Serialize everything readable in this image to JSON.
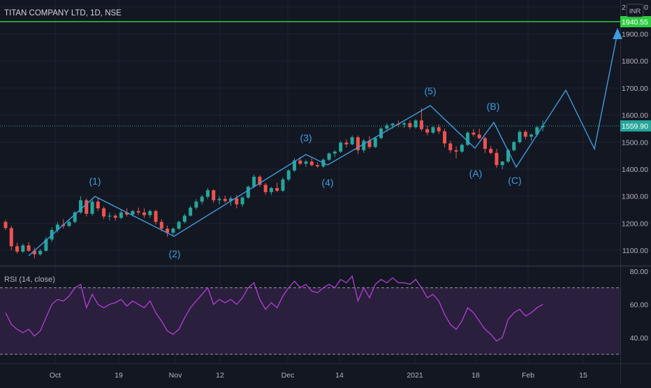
{
  "header": {
    "symbol_line": "TITAN COMPANY LTD, 1D, NSE"
  },
  "colors": {
    "background": "#131722",
    "grid": "#1f2330",
    "up": "#26a69a",
    "down": "#ef5350",
    "wave": "#3d9de0",
    "resistance": "#2ecc40",
    "last_price_line": "#26a69a",
    "rsi_line": "#b43ed6",
    "rsi_band_fill": "#2a1f3d",
    "axis_text": "#b2b5be"
  },
  "chart_data": [
    {
      "type": "candlestick",
      "currency": "INR",
      "y_ticks": [
        "1100.00",
        "1200.00",
        "1300.00",
        "1400.00",
        "1500.00",
        "1600.00",
        "1700.00",
        "1800.00",
        "1900.00",
        "2000.00"
      ],
      "ylim": [
        1000,
        2000
      ],
      "x_ticks": [
        "Oct",
        "19",
        "Nov",
        "12",
        "Dec",
        "14",
        "2021",
        "18",
        "Feb",
        "15"
      ],
      "grid": true,
      "last_price": {
        "value": 1559.9,
        "label": "1559.90"
      },
      "resistance": {
        "value": 1940.55,
        "label": "1940.55"
      },
      "candles": [
        [
          1205,
          1212,
          1175,
          1182
        ],
        [
          1182,
          1190,
          1100,
          1115
        ],
        [
          1115,
          1128,
          1088,
          1095
        ],
        [
          1095,
          1125,
          1090,
          1118
        ],
        [
          1118,
          1130,
          1095,
          1098
        ],
        [
          1098,
          1110,
          1070,
          1085
        ],
        [
          1085,
          1105,
          1080,
          1098
        ],
        [
          1098,
          1150,
          1095,
          1140
        ],
        [
          1140,
          1185,
          1130,
          1175
        ],
        [
          1175,
          1205,
          1165,
          1195
        ],
        [
          1195,
          1215,
          1180,
          1190
        ],
        [
          1190,
          1215,
          1185,
          1205
        ],
        [
          1205,
          1245,
          1200,
          1240
        ],
        [
          1240,
          1300,
          1235,
          1285
        ],
        [
          1285,
          1292,
          1225,
          1235
        ],
        [
          1235,
          1290,
          1228,
          1280
        ],
        [
          1280,
          1295,
          1245,
          1255
        ],
        [
          1255,
          1262,
          1215,
          1225
        ],
        [
          1225,
          1240,
          1210,
          1228
        ],
        [
          1228,
          1235,
          1210,
          1220
        ],
        [
          1220,
          1248,
          1215,
          1240
        ],
        [
          1240,
          1255,
          1225,
          1232
        ],
        [
          1232,
          1250,
          1225,
          1245
        ],
        [
          1245,
          1258,
          1230,
          1240
        ],
        [
          1240,
          1255,
          1220,
          1230
        ],
        [
          1230,
          1250,
          1220,
          1245
        ],
        [
          1245,
          1250,
          1195,
          1205
        ],
        [
          1205,
          1215,
          1170,
          1180
        ],
        [
          1180,
          1192,
          1150,
          1165
        ],
        [
          1165,
          1185,
          1155,
          1180
        ],
        [
          1180,
          1210,
          1175,
          1205
        ],
        [
          1205,
          1235,
          1200,
          1228
        ],
        [
          1228,
          1265,
          1225,
          1258
        ],
        [
          1258,
          1290,
          1250,
          1280
        ],
        [
          1280,
          1305,
          1270,
          1298
        ],
        [
          1298,
          1330,
          1290,
          1322
        ],
        [
          1322,
          1325,
          1275,
          1285
        ],
        [
          1285,
          1300,
          1270,
          1290
        ],
        [
          1290,
          1302,
          1275,
          1282
        ],
        [
          1282,
          1300,
          1265,
          1292
        ],
        [
          1292,
          1305,
          1255,
          1270
        ],
        [
          1270,
          1300,
          1260,
          1295
        ],
        [
          1295,
          1340,
          1290,
          1335
        ],
        [
          1335,
          1380,
          1330,
          1372
        ],
        [
          1372,
          1378,
          1335,
          1342
        ],
        [
          1342,
          1350,
          1305,
          1315
        ],
        [
          1315,
          1335,
          1305,
          1330
        ],
        [
          1330,
          1350,
          1315,
          1320
        ],
        [
          1320,
          1370,
          1315,
          1362
        ],
        [
          1362,
          1400,
          1355,
          1395
        ],
        [
          1395,
          1440,
          1390,
          1432
        ],
        [
          1432,
          1445,
          1415,
          1420
        ],
        [
          1420,
          1435,
          1408,
          1428
        ],
        [
          1428,
          1440,
          1410,
          1415
        ],
        [
          1415,
          1425,
          1405,
          1410
        ],
        [
          1410,
          1440,
          1405,
          1435
        ],
        [
          1435,
          1462,
          1430,
          1458
        ],
        [
          1458,
          1470,
          1445,
          1465
        ],
        [
          1465,
          1505,
          1460,
          1498
        ],
        [
          1498,
          1510,
          1480,
          1492
        ],
        [
          1492,
          1525,
          1488,
          1518
        ],
        [
          1518,
          1525,
          1455,
          1470
        ],
        [
          1470,
          1512,
          1460,
          1505
        ],
        [
          1505,
          1522,
          1475,
          1482
        ],
        [
          1482,
          1520,
          1478,
          1515
        ],
        [
          1515,
          1555,
          1510,
          1550
        ],
        [
          1550,
          1570,
          1540,
          1562
        ],
        [
          1562,
          1572,
          1550,
          1568
        ],
        [
          1568,
          1580,
          1555,
          1565
        ],
        [
          1565,
          1575,
          1552,
          1570
        ],
        [
          1570,
          1580,
          1548,
          1555
        ],
        [
          1555,
          1585,
          1550,
          1580
        ],
        [
          1580,
          1625,
          1540,
          1548
        ],
        [
          1548,
          1560,
          1525,
          1535
        ],
        [
          1535,
          1560,
          1530,
          1555
        ],
        [
          1555,
          1565,
          1530,
          1540
        ],
        [
          1540,
          1550,
          1480,
          1495
        ],
        [
          1495,
          1505,
          1460,
          1470
        ],
        [
          1470,
          1485,
          1440,
          1465
        ],
        [
          1465,
          1495,
          1460,
          1490
        ],
        [
          1490,
          1540,
          1485,
          1535
        ],
        [
          1535,
          1548,
          1520,
          1528
        ],
        [
          1528,
          1550,
          1510,
          1515
        ],
        [
          1515,
          1520,
          1460,
          1475
        ],
        [
          1475,
          1485,
          1455,
          1460
        ],
        [
          1460,
          1475,
          1405,
          1415
        ],
        [
          1415,
          1430,
          1400,
          1428
        ],
        [
          1428,
          1475,
          1422,
          1470
        ],
        [
          1470,
          1505,
          1465,
          1500
        ],
        [
          1500,
          1545,
          1495,
          1538
        ],
        [
          1538,
          1545,
          1510,
          1520
        ],
        [
          1520,
          1532,
          1505,
          1528
        ],
        [
          1528,
          1560,
          1520,
          1555
        ],
        [
          1555,
          1580,
          1540,
          1560
        ]
      ],
      "wave_labels": [
        "(1)",
        "(2)",
        "(3)",
        "(4)",
        "(5)",
        "(A)",
        "(B)",
        "(C)"
      ]
    },
    {
      "type": "line",
      "title": "RSI (14, close)",
      "y_ticks": [
        "40.00",
        "60.00",
        "80.00"
      ],
      "ylim": [
        30,
        82
      ],
      "bands": [
        30,
        70
      ],
      "values": [
        55,
        48,
        45,
        43,
        45,
        41,
        44,
        52,
        60,
        63,
        62,
        65,
        70,
        72,
        58,
        66,
        60,
        58,
        60,
        61,
        63,
        59,
        62,
        60,
        58,
        62,
        55,
        50,
        44,
        42,
        45,
        52,
        58,
        62,
        66,
        70,
        60,
        63,
        61,
        63,
        60,
        64,
        70,
        73,
        63,
        57,
        61,
        58,
        65,
        70,
        74,
        70,
        72,
        68,
        67,
        70,
        72,
        70,
        75,
        73,
        77,
        62,
        70,
        64,
        72,
        75,
        73,
        76,
        73,
        73,
        72,
        75,
        70,
        64,
        66,
        62,
        54,
        48,
        45,
        50,
        58,
        55,
        50,
        45,
        42,
        38,
        40,
        51,
        55,
        57,
        53,
        55,
        58,
        60
      ]
    }
  ]
}
